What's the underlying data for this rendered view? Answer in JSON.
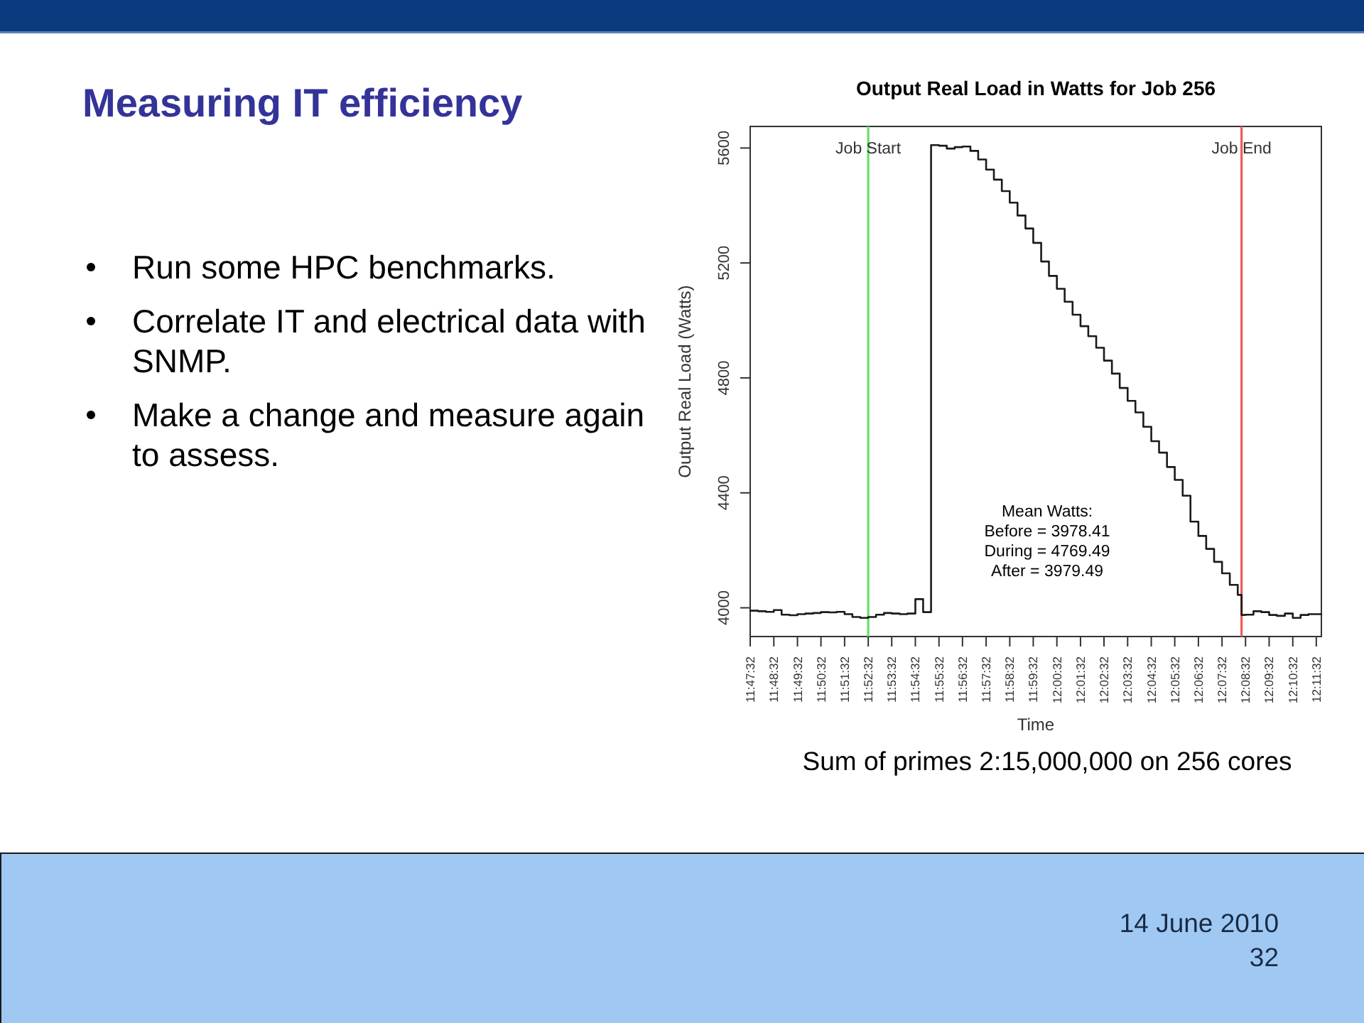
{
  "chart_data": [
    {
      "type": "other",
      "title": "Measuring IT efficiency",
      "annotations": [
        "Run some HPC benchmarks.",
        "Correlate IT and electrical data with SNMP.",
        "Make a change and measure again to assess."
      ]
    },
    {
      "type": "step",
      "title": "Output Real Load in Watts for Job 256",
      "xlabel": "Time",
      "ylabel": "Output Real Load (Watts)",
      "x": [
        11.7922,
        11.7978,
        11.8033,
        11.8089,
        11.8144,
        11.82,
        11.8256,
        11.8311,
        11.8367,
        11.8422,
        11.8478,
        11.8533,
        11.8589,
        11.8644,
        11.87,
        11.8756,
        11.8811,
        11.8867,
        11.8922,
        11.8978,
        11.9033,
        11.9089,
        11.9144,
        11.92,
        11.9256,
        11.9311,
        11.9367,
        11.9422,
        11.9478,
        11.9533,
        11.9589,
        11.9644,
        11.97,
        11.9756,
        11.9811,
        11.9867,
        11.9922,
        11.9978,
        12.0033,
        12.0089,
        12.0144,
        12.02,
        12.0256,
        12.0311,
        12.0367,
        12.0422,
        12.0478,
        12.0533,
        12.0589,
        12.0644,
        12.07,
        12.0756,
        12.0811,
        12.0867,
        12.0922,
        12.0978,
        12.1033,
        12.1089,
        12.1144,
        12.12,
        12.1256,
        12.1311,
        12.1367,
        12.1394,
        12.1422,
        12.1478,
        12.1533,
        12.1589,
        12.1644,
        12.17,
        12.1756,
        12.1811,
        12.1867,
        12.1922,
        12.1958
      ],
      "series": [
        {
          "color": "#1a1a1a",
          "values": [
            3990,
            3988,
            3986,
            3992,
            3976,
            3974,
            3978,
            3980,
            3982,
            3985,
            3984,
            3986,
            3978,
            3968,
            3965,
            3968,
            3976,
            3982,
            3980,
            3978,
            3980,
            4030,
            3985,
            5610,
            5608,
            5598,
            5603,
            5605,
            5590,
            5560,
            5525,
            5490,
            5450,
            5410,
            5365,
            5320,
            5270,
            5205,
            5155,
            5110,
            5065,
            5020,
            4980,
            4945,
            4905,
            4860,
            4815,
            4765,
            4720,
            4680,
            4630,
            4580,
            4540,
            4490,
            4445,
            4390,
            4300,
            4250,
            4205,
            4160,
            4120,
            4080,
            4045,
            3975,
            3976,
            3988,
            3985,
            3975,
            3972,
            3980,
            3965,
            3975,
            3978,
            3978,
            3978
          ]
        }
      ],
      "xlim": [
        11.7922,
        12.1958
      ],
      "xticks": [
        {
          "value": 11.7922,
          "label": "11:47:32"
        },
        {
          "value": 11.8089,
          "label": "11:48:32"
        },
        {
          "value": 11.8256,
          "label": "11:49:32"
        },
        {
          "value": 11.8422,
          "label": "11:50:32"
        },
        {
          "value": 11.8589,
          "label": "11:51:32"
        },
        {
          "value": 11.8756,
          "label": "11:52:32"
        },
        {
          "value": 11.8922,
          "label": "11:53:32"
        },
        {
          "value": 11.9089,
          "label": "11:54:32"
        },
        {
          "value": 11.9256,
          "label": "11:55:32"
        },
        {
          "value": 11.9422,
          "label": "11:56:32"
        },
        {
          "value": 11.9589,
          "label": "11:57:32"
        },
        {
          "value": 11.9756,
          "label": "11:58:32"
        },
        {
          "value": 11.9922,
          "label": "11:59:32"
        },
        {
          "value": 12.0089,
          "label": "12:00:32"
        },
        {
          "value": 12.0256,
          "label": "12:01:32"
        },
        {
          "value": 12.0422,
          "label": "12:02:32"
        },
        {
          "value": 12.0589,
          "label": "12:03:32"
        },
        {
          "value": 12.0756,
          "label": "12:04:32"
        },
        {
          "value": 12.0922,
          "label": "12:05:32"
        },
        {
          "value": 12.1089,
          "label": "12:06:32"
        },
        {
          "value": 12.1256,
          "label": "12:07:32"
        },
        {
          "value": 12.1422,
          "label": "12:08:32"
        },
        {
          "value": 12.1589,
          "label": "12:09:32"
        },
        {
          "value": 12.1756,
          "label": "12:10:32"
        },
        {
          "value": 12.1922,
          "label": "12:11:32"
        }
      ],
      "ylim": [
        3900,
        5675
      ],
      "yticks": [
        4000,
        4400,
        4800,
        5200,
        5600
      ],
      "ref_lines": [
        {
          "axis": "x",
          "value": 11.8756,
          "label": "Job Start",
          "color": "#66e066"
        },
        {
          "axis": "x",
          "value": 12.1394,
          "label": "Job End",
          "color": "#ee5a5a"
        }
      ],
      "annotations": [
        "Mean Watts:\nBefore = 3978.41\nDuring = 4769.49\nAfter = 3979.49",
        "Sum of primes 2:15,000,000 on 256 cores"
      ]
    },
    {
      "type": "other",
      "annotations": [
        "14 June 2010",
        "32"
      ]
    }
  ]
}
